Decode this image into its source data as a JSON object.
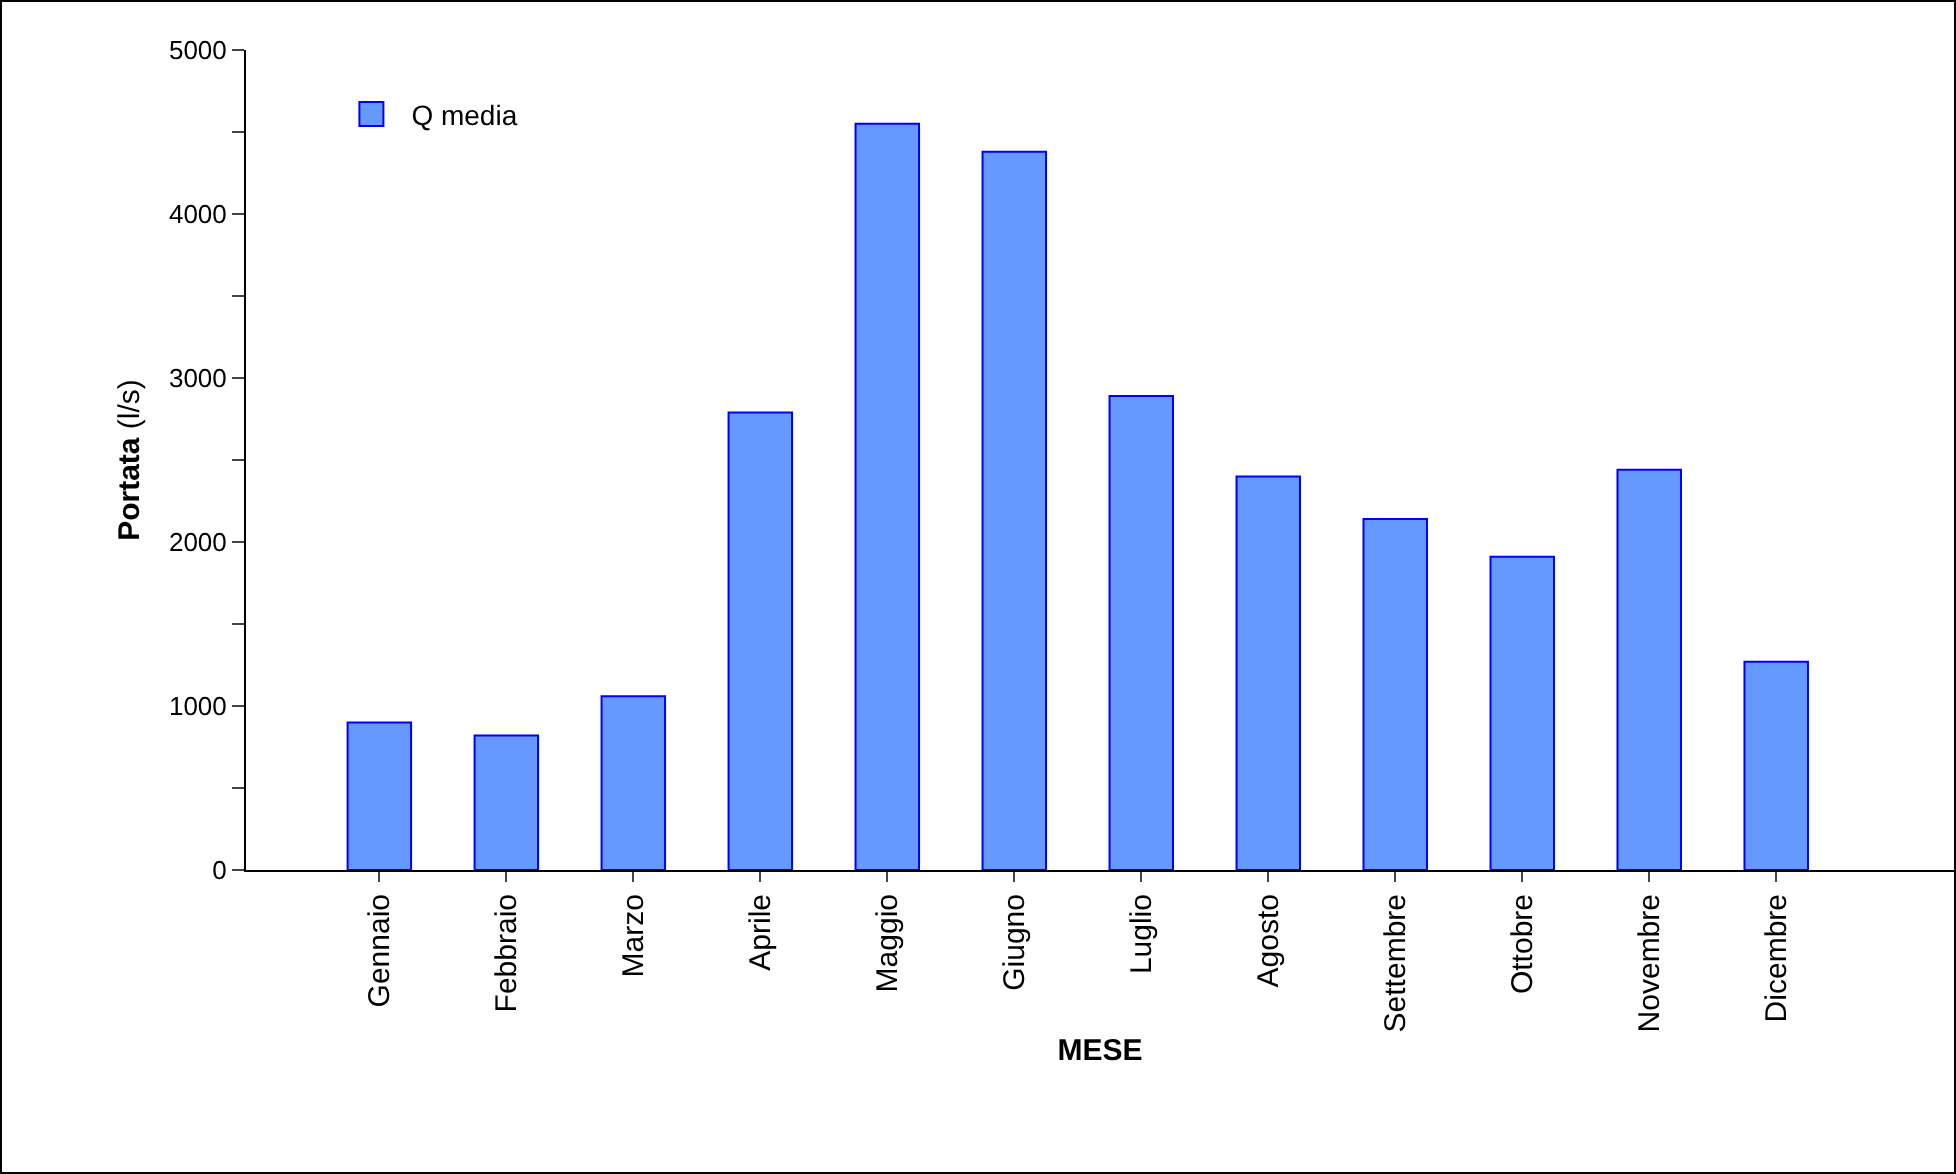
{
  "chart_data": {
    "type": "bar",
    "xlabel": "MESE",
    "ylabel": "Portata (l/s)",
    "categories": [
      "Gennaio",
      "Febbraio",
      "Marzo",
      "Aprile",
      "Maggio",
      "Giugno",
      "Luglio",
      "Agosto",
      "Settembre",
      "Ottobre",
      "Novembre",
      "Dicembre"
    ],
    "series": [
      {
        "name": "Q media",
        "color": "#6699ff",
        "values": [
          900,
          820,
          1060,
          2790,
          4550,
          4380,
          2890,
          2400,
          2140,
          1910,
          2440,
          1270
        ]
      }
    ],
    "ylim": [
      0,
      5000
    ],
    "yticks": [
      0,
      {
        "value": 500,
        "label": null
      },
      1000,
      {
        "value": 1500,
        "label": null
      },
      2000,
      {
        "value": 2500,
        "label": null
      },
      3000,
      {
        "value": 3500,
        "label": null
      },
      4000,
      {
        "value": 4500,
        "label": null
      },
      5000
    ],
    "grid": false,
    "legend": "top left"
  }
}
